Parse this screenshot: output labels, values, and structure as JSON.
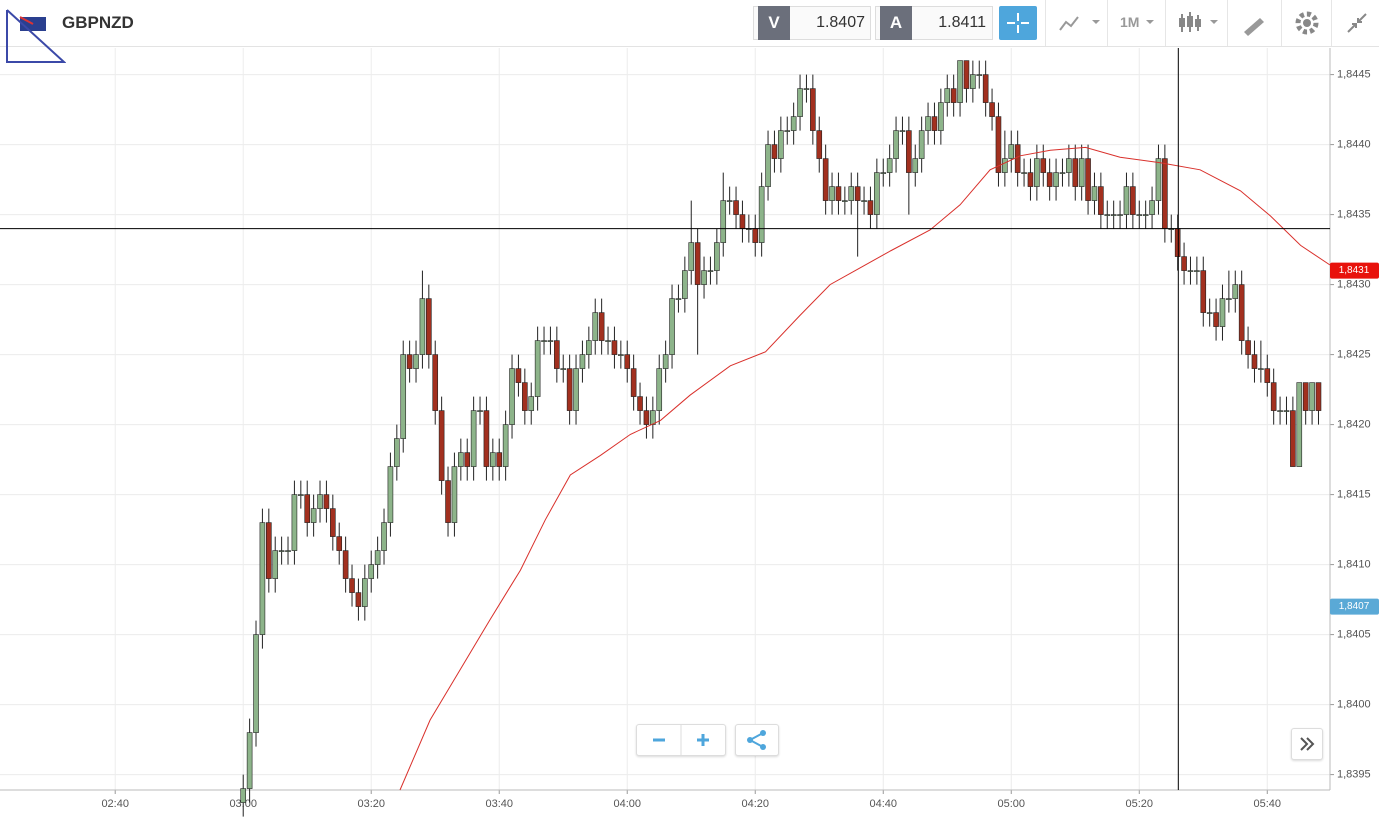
{
  "header": {
    "symbol": "GBPNZD",
    "sell_label": "V",
    "sell_price": "1.8407",
    "buy_label": "A",
    "buy_price": "1.8411",
    "timeframe": "1M"
  },
  "chart_data": {
    "type": "candlestick",
    "bull_color": "#8db48a",
    "bear_color": "#a2301f",
    "line_color": "#d9302b",
    "xlim": [
      142,
      349.8
    ],
    "ylim": [
      1.83939,
      1.84469
    ],
    "xticks": [
      {
        "value": 160,
        "label": "02:40"
      },
      {
        "value": 180,
        "label": "03:00"
      },
      {
        "value": 200,
        "label": "03:20"
      },
      {
        "value": 220,
        "label": "03:40"
      },
      {
        "value": 240,
        "label": "04:00"
      },
      {
        "value": 260,
        "label": "04:20"
      },
      {
        "value": 280,
        "label": "04:40"
      },
      {
        "value": 300,
        "label": "05:00"
      },
      {
        "value": 320,
        "label": "05:20"
      },
      {
        "value": 340,
        "label": "05:40"
      }
    ],
    "yticks": [
      {
        "value": 1.8395,
        "label": "1,8395"
      },
      {
        "value": 1.84,
        "label": "1,8400"
      },
      {
        "value": 1.8405,
        "label": "1,8405"
      },
      {
        "value": 1.841,
        "label": "1,8410"
      },
      {
        "value": 1.8415,
        "label": "1,8415"
      },
      {
        "value": 1.842,
        "label": "1,8420"
      },
      {
        "value": 1.8425,
        "label": "1,8425"
      },
      {
        "value": 1.843,
        "label": "1,8430"
      },
      {
        "value": 1.8435,
        "label": "1,8435"
      },
      {
        "value": 1.844,
        "label": "1,8440"
      },
      {
        "value": 1.8445,
        "label": "1,8445"
      }
    ],
    "grid": true,
    "x": [
      180,
      181,
      182,
      183,
      184,
      185,
      186,
      187,
      188,
      189,
      190,
      191,
      192,
      193,
      194,
      195,
      196,
      197,
      198,
      199,
      200,
      201,
      202,
      203,
      204,
      205,
      206,
      207,
      208,
      209,
      210,
      211,
      212,
      213,
      214,
      215,
      216,
      217,
      218,
      219,
      220,
      221,
      222,
      223,
      224,
      225,
      226,
      227,
      228,
      229,
      230,
      231,
      232,
      233,
      234,
      235,
      236,
      237,
      238,
      239,
      240,
      241,
      242,
      243,
      244,
      245,
      246,
      247,
      248,
      249,
      250,
      251,
      252,
      253,
      254,
      255,
      256,
      257,
      258,
      259,
      260,
      261,
      262,
      263,
      264,
      265,
      266,
      267,
      268,
      269,
      270,
      271,
      272,
      273,
      274,
      275,
      276,
      277,
      278,
      279,
      280,
      281,
      282,
      283,
      284,
      285,
      286,
      287,
      288,
      289,
      290,
      291,
      292,
      293,
      294,
      295,
      296,
      297,
      298,
      299,
      300,
      301,
      302,
      303,
      304,
      305,
      306,
      307,
      308,
      309,
      310,
      311,
      312,
      313,
      314,
      315,
      316,
      317,
      318,
      319,
      320,
      321,
      322,
      323,
      324,
      325,
      326,
      327,
      328,
      329,
      330,
      331,
      332,
      333,
      334,
      335,
      336,
      337,
      338,
      339,
      340,
      341,
      342,
      343,
      344,
      345,
      346,
      347,
      348
    ],
    "ohlc": [
      [
        1.8393,
        1.8395,
        1.8392,
        1.8394
      ],
      [
        1.8394,
        1.8399,
        1.8393,
        1.8398
      ],
      [
        1.8398,
        1.8406,
        1.8397,
        1.8405
      ],
      [
        1.8405,
        1.8414,
        1.8404,
        1.8413
      ],
      [
        1.8413,
        1.8414,
        1.8408,
        1.8409
      ],
      [
        1.8409,
        1.8412,
        1.8408,
        1.8411
      ],
      [
        1.8411,
        1.8412,
        1.841,
        1.8411
      ],
      [
        1.8411,
        1.8412,
        1.841,
        1.8411
      ],
      [
        1.8411,
        1.8416,
        1.841,
        1.8415
      ],
      [
        1.8415,
        1.8416,
        1.8414,
        1.8415
      ],
      [
        1.8415,
        1.8416,
        1.8412,
        1.8413
      ],
      [
        1.8413,
        1.8415,
        1.8412,
        1.8414
      ],
      [
        1.8414,
        1.8416,
        1.8413,
        1.8415
      ],
      [
        1.8415,
        1.8416,
        1.8413,
        1.8414
      ],
      [
        1.8414,
        1.8415,
        1.8411,
        1.8412
      ],
      [
        1.8412,
        1.8413,
        1.841,
        1.8411
      ],
      [
        1.8411,
        1.8412,
        1.8408,
        1.8409
      ],
      [
        1.8409,
        1.841,
        1.8407,
        1.8408
      ],
      [
        1.8408,
        1.8409,
        1.8406,
        1.8407
      ],
      [
        1.8407,
        1.841,
        1.8406,
        1.8409
      ],
      [
        1.8409,
        1.8411,
        1.8408,
        1.841
      ],
      [
        1.841,
        1.8412,
        1.8409,
        1.8411
      ],
      [
        1.8411,
        1.8414,
        1.841,
        1.8413
      ],
      [
        1.8413,
        1.8418,
        1.8412,
        1.8417
      ],
      [
        1.8417,
        1.842,
        1.8416,
        1.8419
      ],
      [
        1.8419,
        1.8426,
        1.8418,
        1.8425
      ],
      [
        1.8425,
        1.8426,
        1.8423,
        1.8424
      ],
      [
        1.8424,
        1.8426,
        1.8423,
        1.8425
      ],
      [
        1.8425,
        1.8431,
        1.8424,
        1.8429
      ],
      [
        1.8429,
        1.843,
        1.8424,
        1.8425
      ],
      [
        1.8425,
        1.8426,
        1.842,
        1.8421
      ],
      [
        1.8421,
        1.8422,
        1.8415,
        1.8416
      ],
      [
        1.8416,
        1.8417,
        1.8412,
        1.8413
      ],
      [
        1.8413,
        1.8418,
        1.8412,
        1.8417
      ],
      [
        1.8417,
        1.8419,
        1.8416,
        1.8418
      ],
      [
        1.8418,
        1.8419,
        1.8416,
        1.8417
      ],
      [
        1.8417,
        1.8422,
        1.8416,
        1.8421
      ],
      [
        1.8421,
        1.8422,
        1.842,
        1.8421
      ],
      [
        1.8421,
        1.8422,
        1.8416,
        1.8417
      ],
      [
        1.8417,
        1.8419,
        1.8416,
        1.8418
      ],
      [
        1.8418,
        1.8419,
        1.8416,
        1.8417
      ],
      [
        1.8417,
        1.8421,
        1.8416,
        1.842
      ],
      [
        1.842,
        1.8425,
        1.8419,
        1.8424
      ],
      [
        1.8424,
        1.8425,
        1.8422,
        1.8423
      ],
      [
        1.8423,
        1.8424,
        1.842,
        1.8421
      ],
      [
        1.8421,
        1.8423,
        1.842,
        1.8422
      ],
      [
        1.8422,
        1.8427,
        1.8421,
        1.8426
      ],
      [
        1.8426,
        1.8427,
        1.8425,
        1.8426
      ],
      [
        1.8426,
        1.8427,
        1.8425,
        1.8426
      ],
      [
        1.8426,
        1.8427,
        1.8423,
        1.8424
      ],
      [
        1.8424,
        1.8425,
        1.8423,
        1.8424
      ],
      [
        1.8424,
        1.8425,
        1.842,
        1.8421
      ],
      [
        1.8421,
        1.8425,
        1.842,
        1.8424
      ],
      [
        1.8424,
        1.8426,
        1.8423,
        1.8425
      ],
      [
        1.8425,
        1.8427,
        1.8424,
        1.8426
      ],
      [
        1.8426,
        1.8429,
        1.8425,
        1.8428
      ],
      [
        1.8428,
        1.8429,
        1.8425,
        1.8426
      ],
      [
        1.8426,
        1.8427,
        1.8425,
        1.8426
      ],
      [
        1.8426,
        1.8427,
        1.8424,
        1.8425
      ],
      [
        1.8425,
        1.8426,
        1.8424,
        1.8425
      ],
      [
        1.8425,
        1.8426,
        1.8423,
        1.8424
      ],
      [
        1.8424,
        1.8425,
        1.8421,
        1.8422
      ],
      [
        1.8422,
        1.8423,
        1.842,
        1.8421
      ],
      [
        1.8421,
        1.8422,
        1.8419,
        1.842
      ],
      [
        1.842,
        1.8422,
        1.8419,
        1.8421
      ],
      [
        1.8421,
        1.8425,
        1.842,
        1.8424
      ],
      [
        1.8424,
        1.8426,
        1.8423,
        1.8425
      ],
      [
        1.8425,
        1.843,
        1.8424,
        1.8429
      ],
      [
        1.8429,
        1.843,
        1.8428,
        1.8429
      ],
      [
        1.8429,
        1.8432,
        1.8428,
        1.8431
      ],
      [
        1.8431,
        1.8436,
        1.843,
        1.8433
      ],
      [
        1.8433,
        1.8434,
        1.8425,
        1.843
      ],
      [
        1.843,
        1.8432,
        1.8429,
        1.8431
      ],
      [
        1.8431,
        1.8432,
        1.843,
        1.8431
      ],
      [
        1.8431,
        1.8434,
        1.843,
        1.8433
      ],
      [
        1.8433,
        1.8438,
        1.8432,
        1.8436
      ],
      [
        1.8436,
        1.8437,
        1.8435,
        1.8436
      ],
      [
        1.8436,
        1.8437,
        1.8434,
        1.8435
      ],
      [
        1.8435,
        1.8436,
        1.8433,
        1.8434
      ],
      [
        1.8434,
        1.8435,
        1.8433,
        1.8434
      ],
      [
        1.8434,
        1.8435,
        1.8432,
        1.8433
      ],
      [
        1.8433,
        1.8438,
        1.8432,
        1.8437
      ],
      [
        1.8437,
        1.8441,
        1.8436,
        1.844
      ],
      [
        1.844,
        1.8441,
        1.8438,
        1.8439
      ],
      [
        1.8439,
        1.8442,
        1.8438,
        1.8441
      ],
      [
        1.8441,
        1.8442,
        1.844,
        1.8441
      ],
      [
        1.8441,
        1.8443,
        1.844,
        1.8442
      ],
      [
        1.8442,
        1.8445,
        1.8441,
        1.8444
      ],
      [
        1.8444,
        1.8445,
        1.8443,
        1.8444
      ],
      [
        1.8444,
        1.8445,
        1.844,
        1.8441
      ],
      [
        1.8441,
        1.8442,
        1.8438,
        1.8439
      ],
      [
        1.8439,
        1.844,
        1.8435,
        1.8436
      ],
      [
        1.8436,
        1.8438,
        1.8435,
        1.8437
      ],
      [
        1.8437,
        1.8438,
        1.8435,
        1.8436
      ],
      [
        1.8436,
        1.8437,
        1.8435,
        1.8436
      ],
      [
        1.8436,
        1.8438,
        1.8435,
        1.8437
      ],
      [
        1.8437,
        1.8438,
        1.8432,
        1.8436
      ],
      [
        1.8436,
        1.8437,
        1.8435,
        1.8436
      ],
      [
        1.8436,
        1.8437,
        1.8434,
        1.8435
      ],
      [
        1.8435,
        1.8439,
        1.8434,
        1.8438
      ],
      [
        1.8438,
        1.8439,
        1.8437,
        1.8438
      ],
      [
        1.8438,
        1.844,
        1.8437,
        1.8439
      ],
      [
        1.8439,
        1.8442,
        1.8438,
        1.8441
      ],
      [
        1.8441,
        1.8442,
        1.844,
        1.8441
      ],
      [
        1.8441,
        1.8442,
        1.8435,
        1.8438
      ],
      [
        1.8438,
        1.844,
        1.8437,
        1.8439
      ],
      [
        1.8439,
        1.8442,
        1.8438,
        1.8441
      ],
      [
        1.8441,
        1.8443,
        1.844,
        1.8442
      ],
      [
        1.8442,
        1.8443,
        1.844,
        1.8441
      ],
      [
        1.8441,
        1.8444,
        1.844,
        1.8443
      ],
      [
        1.8443,
        1.8445,
        1.8442,
        1.8444
      ],
      [
        1.8444,
        1.8445,
        1.8442,
        1.8443
      ],
      [
        1.8443,
        1.8446,
        1.8442,
        1.8446
      ],
      [
        1.8446,
        1.8446,
        1.8443,
        1.8444
      ],
      [
        1.8444,
        1.8446,
        1.8443,
        1.8445
      ],
      [
        1.8445,
        1.8446,
        1.8444,
        1.8445
      ],
      [
        1.8445,
        1.8446,
        1.8442,
        1.8443
      ],
      [
        1.8443,
        1.8444,
        1.8441,
        1.8442
      ],
      [
        1.8442,
        1.8443,
        1.8437,
        1.8438
      ],
      [
        1.8438,
        1.8441,
        1.8437,
        1.8439
      ],
      [
        1.8439,
        1.8441,
        1.8438,
        1.844
      ],
      [
        1.844,
        1.8441,
        1.8437,
        1.8438
      ],
      [
        1.8438,
        1.8439,
        1.8437,
        1.8438
      ],
      [
        1.8438,
        1.8439,
        1.8436,
        1.8437
      ],
      [
        1.8437,
        1.844,
        1.8436,
        1.8439
      ],
      [
        1.8439,
        1.844,
        1.8437,
        1.8438
      ],
      [
        1.8438,
        1.8439,
        1.8436,
        1.8437
      ],
      [
        1.8437,
        1.8439,
        1.8436,
        1.8438
      ],
      [
        1.8438,
        1.8439,
        1.8437,
        1.8438
      ],
      [
        1.8438,
        1.844,
        1.8437,
        1.8439
      ],
      [
        1.8439,
        1.844,
        1.8436,
        1.8437
      ],
      [
        1.8437,
        1.844,
        1.8436,
        1.8439
      ],
      [
        1.8439,
        1.844,
        1.8435,
        1.8436
      ],
      [
        1.8436,
        1.8438,
        1.8435,
        1.8437
      ],
      [
        1.8437,
        1.8438,
        1.8434,
        1.8435
      ],
      [
        1.8435,
        1.8436,
        1.8434,
        1.8435
      ],
      [
        1.8435,
        1.8436,
        1.8434,
        1.8435
      ],
      [
        1.8435,
        1.8436,
        1.8434,
        1.8435
      ],
      [
        1.8435,
        1.8438,
        1.8434,
        1.8437
      ],
      [
        1.8437,
        1.8438,
        1.8434,
        1.8435
      ],
      [
        1.8435,
        1.8436,
        1.8434,
        1.8435
      ],
      [
        1.8435,
        1.8436,
        1.8434,
        1.8435
      ],
      [
        1.8435,
        1.8437,
        1.8434,
        1.8436
      ],
      [
        1.8436,
        1.844,
        1.8435,
        1.8439
      ],
      [
        1.8439,
        1.844,
        1.8433,
        1.8434
      ],
      [
        1.8434,
        1.8435,
        1.8433,
        1.8434
      ],
      [
        1.8434,
        1.8435,
        1.8431,
        1.8432
      ],
      [
        1.8432,
        1.8433,
        1.843,
        1.8431
      ],
      [
        1.8431,
        1.8432,
        1.843,
        1.8431
      ],
      [
        1.8431,
        1.8432,
        1.843,
        1.8431
      ],
      [
        1.8431,
        1.8432,
        1.8427,
        1.8428
      ],
      [
        1.8428,
        1.8429,
        1.8427,
        1.8428
      ],
      [
        1.8428,
        1.8429,
        1.8426,
        1.8427
      ],
      [
        1.8427,
        1.843,
        1.8426,
        1.8429
      ],
      [
        1.8429,
        1.8431,
        1.8428,
        1.8429
      ],
      [
        1.8429,
        1.8431,
        1.8428,
        1.843
      ],
      [
        1.843,
        1.8431,
        1.8425,
        1.8426
      ],
      [
        1.8426,
        1.8427,
        1.8424,
        1.8425
      ],
      [
        1.8425,
        1.8426,
        1.8423,
        1.8424
      ],
      [
        1.8424,
        1.8426,
        1.8423,
        1.8424
      ],
      [
        1.8424,
        1.8425,
        1.8422,
        1.8423
      ],
      [
        1.8423,
        1.8424,
        1.842,
        1.8421
      ],
      [
        1.8421,
        1.8422,
        1.842,
        1.8421
      ],
      [
        1.8421,
        1.8422,
        1.842,
        1.8421
      ],
      [
        1.8421,
        1.8422,
        1.8417,
        1.8417
      ],
      [
        1.8417,
        1.8423,
        1.8417,
        1.8423
      ],
      [
        1.8423,
        1.8423,
        1.842,
        1.8421
      ],
      [
        1.8421,
        1.8423,
        1.842,
        1.8423
      ],
      [
        1.8423,
        1.8423,
        1.842,
        1.8421
      ]
    ],
    "ma": {
      "x": [
        204.5,
        209.2,
        213.9,
        218.6,
        223.3,
        227.2,
        231.1,
        235.8,
        240.5,
        245.2,
        249.8,
        256.1,
        261.6,
        267,
        271.7,
        276.4,
        281.1,
        287.3,
        292,
        296.7,
        301.4,
        306.1,
        311.6,
        317,
        323.3,
        329.5,
        335.8,
        340.5,
        345.2,
        349.8
      ],
      "values": [
        1.83939,
        1.83989,
        1.84025,
        1.84061,
        1.84096,
        1.84132,
        1.84164,
        1.84178,
        1.84193,
        1.84203,
        1.84221,
        1.84242,
        1.84252,
        1.84278,
        1.843,
        1.84312,
        1.84324,
        1.84339,
        1.84357,
        1.84382,
        1.84392,
        1.84396,
        1.84398,
        1.84391,
        1.84387,
        1.84382,
        1.84367,
        1.84349,
        1.84328,
        1.84314
      ]
    },
    "crosshair": {
      "x": 326.1,
      "y": 1.8434
    },
    "price_labels": [
      {
        "value": 1.8431,
        "label": "1,8431",
        "color": "#e8120c"
      },
      {
        "value": 1.8407,
        "label": "1,8407",
        "color": "#5aa9d6"
      }
    ]
  }
}
